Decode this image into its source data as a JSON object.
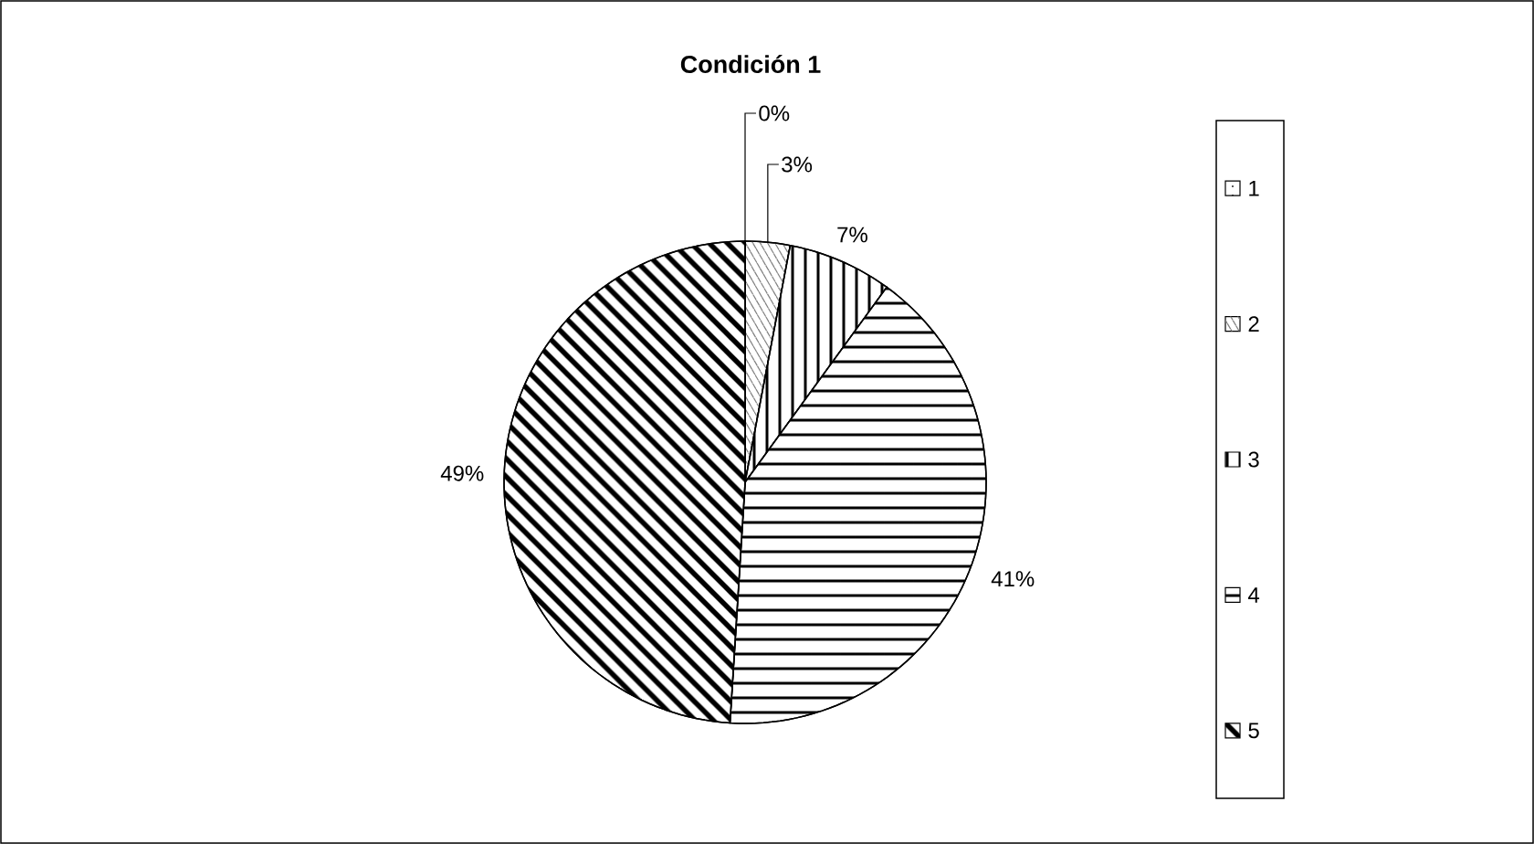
{
  "chart_data": {
    "type": "pie",
    "title": "Condición 1",
    "categories": [
      "1",
      "2",
      "3",
      "4",
      "5"
    ],
    "values": [
      0,
      3,
      7,
      41,
      49
    ],
    "colors": [
      "#ffffff",
      "#ffffff",
      "#ffffff",
      "#ffffff",
      "#ffffff"
    ],
    "value_labels": [
      "0%",
      "3%",
      "7%",
      "41%",
      "49%"
    ],
    "legend": "right"
  }
}
